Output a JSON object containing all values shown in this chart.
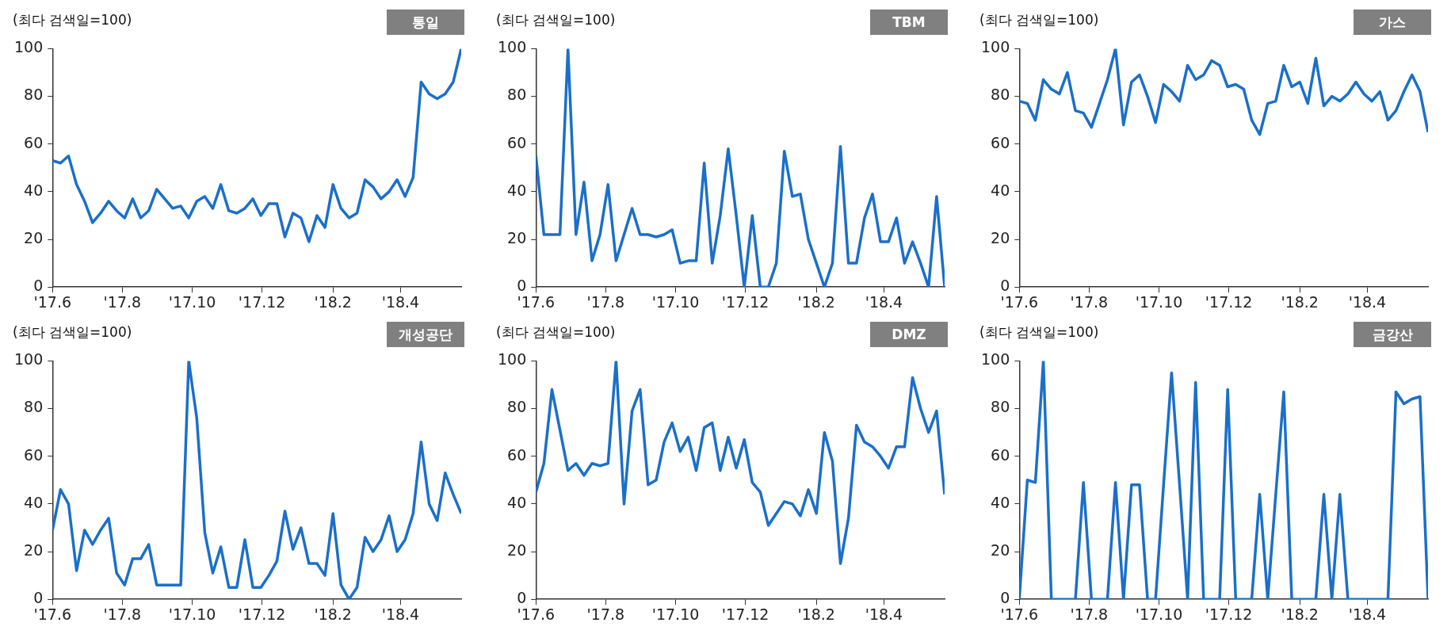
{
  "chart_data": [
    {
      "type": "line",
      "title": "통일",
      "ylabel": "(최다 검색일=100)",
      "color": "#1a6fca",
      "x": [
        "2017-06-01",
        "2017-06-08",
        "2017-06-15",
        "2017-06-22",
        "2017-06-29",
        "2017-07-06",
        "2017-07-13",
        "2017-07-20",
        "2017-07-27",
        "2017-08-03",
        "2017-08-10",
        "2017-08-17",
        "2017-08-24",
        "2017-08-31",
        "2017-09-07",
        "2017-09-14",
        "2017-09-21",
        "2017-09-28",
        "2017-10-05",
        "2017-10-12",
        "2017-10-19",
        "2017-10-26",
        "2017-11-02",
        "2017-11-09",
        "2017-11-16",
        "2017-11-23",
        "2017-11-30",
        "2017-12-07",
        "2017-12-14",
        "2017-12-21",
        "2017-12-28",
        "2018-01-04",
        "2018-01-11",
        "2018-01-18",
        "2018-01-25",
        "2018-02-01",
        "2018-02-08",
        "2018-02-15",
        "2018-02-22",
        "2018-03-01",
        "2018-03-08",
        "2018-03-15",
        "2018-03-22",
        "2018-03-29",
        "2018-04-05",
        "2018-04-12",
        "2018-04-19",
        "2018-04-26",
        "2018-05-03",
        "2018-05-10",
        "2018-05-17",
        "2018-05-24"
      ],
      "values": [
        53,
        52,
        55,
        43,
        36,
        27,
        31,
        36,
        32,
        29,
        37,
        29,
        32,
        41,
        37,
        33,
        34,
        29,
        36,
        38,
        33,
        43,
        32,
        31,
        33,
        37,
        30,
        35,
        35,
        21,
        31,
        29,
        19,
        30,
        25,
        43,
        33,
        29,
        31,
        45,
        42,
        37,
        40,
        45,
        38,
        46,
        86,
        81,
        79,
        81,
        86,
        100
      ],
      "xlim": [
        "2017-06-01",
        "2018-05-24"
      ],
      "xticks": [
        {
          "value": "2017-06-01",
          "label": "'17.6"
        },
        {
          "value": "2017-08-01",
          "label": "'17.8"
        },
        {
          "value": "2017-10-01",
          "label": "'17.10"
        },
        {
          "value": "2017-12-01",
          "label": "'17.12"
        },
        {
          "value": "2018-02-01",
          "label": "'18.2"
        },
        {
          "value": "2018-04-01",
          "label": "'18.4"
        }
      ],
      "ylim": [
        0,
        100
      ],
      "yticks": [
        0,
        20,
        40,
        60,
        80,
        100
      ]
    },
    {
      "type": "line",
      "title": "TBM",
      "ylabel": "(최다 검색일=100)",
      "color": "#1a6fca",
      "x": [
        "2017-06-01",
        "2017-06-08",
        "2017-06-15",
        "2017-06-22",
        "2017-06-29",
        "2017-07-06",
        "2017-07-13",
        "2017-07-20",
        "2017-07-27",
        "2017-08-03",
        "2017-08-10",
        "2017-08-17",
        "2017-08-24",
        "2017-08-31",
        "2017-09-07",
        "2017-09-14",
        "2017-09-21",
        "2017-09-28",
        "2017-10-05",
        "2017-10-12",
        "2017-10-19",
        "2017-10-26",
        "2017-11-02",
        "2017-11-09",
        "2017-11-16",
        "2017-11-23",
        "2017-11-30",
        "2017-12-07",
        "2017-12-14",
        "2017-12-21",
        "2017-12-28",
        "2018-01-04",
        "2018-01-11",
        "2018-01-18",
        "2018-01-25",
        "2018-02-01",
        "2018-02-08",
        "2018-02-15",
        "2018-02-22",
        "2018-03-01",
        "2018-03-08",
        "2018-03-15",
        "2018-03-22",
        "2018-03-29",
        "2018-04-05",
        "2018-04-12",
        "2018-04-19",
        "2018-04-26",
        "2018-05-03",
        "2018-05-10",
        "2018-05-17",
        "2018-05-24"
      ],
      "values": [
        55,
        22,
        22,
        22,
        100,
        22,
        44,
        11,
        22,
        43,
        11,
        22,
        33,
        22,
        22,
        21,
        22,
        24,
        10,
        11,
        11,
        52,
        10,
        30,
        58,
        30,
        0,
        30,
        0,
        0,
        10,
        57,
        38,
        39,
        20,
        10,
        0,
        10,
        59,
        10,
        10,
        29,
        39,
        19,
        19,
        29,
        10,
        19,
        10,
        0,
        38,
        0
      ],
      "xlim": [
        "2017-06-01",
        "2018-05-24"
      ],
      "xticks": [
        {
          "value": "2017-06-01",
          "label": "'17.6"
        },
        {
          "value": "2017-08-01",
          "label": "'17.8"
        },
        {
          "value": "2017-10-01",
          "label": "'17.10"
        },
        {
          "value": "2017-12-01",
          "label": "'17.12"
        },
        {
          "value": "2018-02-01",
          "label": "'18.2"
        },
        {
          "value": "2018-04-01",
          "label": "'18.4"
        }
      ],
      "ylim": [
        0,
        100
      ],
      "yticks": [
        0,
        20,
        40,
        60,
        80,
        100
      ]
    },
    {
      "type": "line",
      "title": "가스",
      "ylabel": "(최다 검색일=100)",
      "color": "#1a6fca",
      "x": [
        "2017-06-01",
        "2017-06-08",
        "2017-06-15",
        "2017-06-22",
        "2017-06-29",
        "2017-07-06",
        "2017-07-13",
        "2017-07-20",
        "2017-07-27",
        "2017-08-03",
        "2017-08-10",
        "2017-08-17",
        "2017-08-24",
        "2017-08-31",
        "2017-09-07",
        "2017-09-14",
        "2017-09-21",
        "2017-09-28",
        "2017-10-05",
        "2017-10-12",
        "2017-10-19",
        "2017-10-26",
        "2017-11-02",
        "2017-11-09",
        "2017-11-16",
        "2017-11-23",
        "2017-11-30",
        "2017-12-07",
        "2017-12-14",
        "2017-12-21",
        "2017-12-28",
        "2018-01-04",
        "2018-01-11",
        "2018-01-18",
        "2018-01-25",
        "2018-02-01",
        "2018-02-08",
        "2018-02-15",
        "2018-02-22",
        "2018-03-01",
        "2018-03-08",
        "2018-03-15",
        "2018-03-22",
        "2018-03-29",
        "2018-04-05",
        "2018-04-12",
        "2018-04-19",
        "2018-04-26",
        "2018-05-03",
        "2018-05-10",
        "2018-05-17",
        "2018-05-24"
      ],
      "values": [
        78,
        77,
        70,
        87,
        83,
        81,
        90,
        74,
        73,
        67,
        77,
        87,
        100,
        68,
        86,
        89,
        80,
        69,
        85,
        82,
        78,
        93,
        87,
        89,
        95,
        93,
        84,
        85,
        83,
        70,
        64,
        77,
        78,
        93,
        84,
        86,
        77,
        96,
        76,
        80,
        78,
        81,
        86,
        81,
        78,
        82,
        70,
        74,
        82,
        89,
        82,
        65
      ],
      "xlim": [
        "2017-06-01",
        "2018-05-24"
      ],
      "xticks": [
        {
          "value": "2017-06-01",
          "label": "'17.6"
        },
        {
          "value": "2017-08-01",
          "label": "'17.8"
        },
        {
          "value": "2017-10-01",
          "label": "'17.10"
        },
        {
          "value": "2017-12-01",
          "label": "'17.12"
        },
        {
          "value": "2018-02-01",
          "label": "'18.2"
        },
        {
          "value": "2018-04-01",
          "label": "'18.4"
        }
      ],
      "ylim": [
        0,
        100
      ],
      "yticks": [
        0,
        20,
        40,
        60,
        80,
        100
      ]
    },
    {
      "type": "line",
      "title": "개성공단",
      "ylabel": "(최다 검색일=100)",
      "color": "#1a6fca",
      "x": [
        "2017-06-01",
        "2017-06-08",
        "2017-06-15",
        "2017-06-22",
        "2017-06-29",
        "2017-07-06",
        "2017-07-13",
        "2017-07-20",
        "2017-07-27",
        "2017-08-03",
        "2017-08-10",
        "2017-08-17",
        "2017-08-24",
        "2017-08-31",
        "2017-09-07",
        "2017-09-14",
        "2017-09-21",
        "2017-09-28",
        "2017-10-05",
        "2017-10-12",
        "2017-10-19",
        "2017-10-26",
        "2017-11-02",
        "2017-11-09",
        "2017-11-16",
        "2017-11-23",
        "2017-11-30",
        "2017-12-07",
        "2017-12-14",
        "2017-12-21",
        "2017-12-28",
        "2018-01-04",
        "2018-01-11",
        "2018-01-18",
        "2018-01-25",
        "2018-02-01",
        "2018-02-08",
        "2018-02-15",
        "2018-02-22",
        "2018-03-01",
        "2018-03-08",
        "2018-03-15",
        "2018-03-22",
        "2018-03-29",
        "2018-04-05",
        "2018-04-12",
        "2018-04-19",
        "2018-04-26",
        "2018-05-03",
        "2018-05-10",
        "2018-05-17",
        "2018-05-24"
      ],
      "values": [
        29,
        46,
        40,
        12,
        29,
        23,
        29,
        34,
        11,
        6,
        17,
        17,
        23,
        6,
        6,
        6,
        6,
        100,
        76,
        28,
        11,
        22,
        5,
        5,
        25,
        5,
        5,
        10,
        16,
        37,
        21,
        30,
        15,
        15,
        10,
        36,
        6,
        0,
        5,
        26,
        20,
        25,
        35,
        20,
        25,
        36,
        66,
        40,
        33,
        53,
        44,
        36
      ],
      "xlim": [
        "2017-06-01",
        "2018-05-24"
      ],
      "xticks": [
        {
          "value": "2017-06-01",
          "label": "'17.6"
        },
        {
          "value": "2017-08-01",
          "label": "'17.8"
        },
        {
          "value": "2017-10-01",
          "label": "'17.10"
        },
        {
          "value": "2017-12-01",
          "label": "'17.12"
        },
        {
          "value": "2018-02-01",
          "label": "'18.2"
        },
        {
          "value": "2018-04-01",
          "label": "'18.4"
        }
      ],
      "ylim": [
        0,
        100
      ],
      "yticks": [
        0,
        20,
        40,
        60,
        80,
        100
      ]
    },
    {
      "type": "line",
      "title": "DMZ",
      "ylabel": "(최다 검색일=100)",
      "color": "#1a6fca",
      "x": [
        "2017-06-01",
        "2017-06-08",
        "2017-06-15",
        "2017-06-22",
        "2017-06-29",
        "2017-07-06",
        "2017-07-13",
        "2017-07-20",
        "2017-07-27",
        "2017-08-03",
        "2017-08-10",
        "2017-08-17",
        "2017-08-24",
        "2017-08-31",
        "2017-09-07",
        "2017-09-14",
        "2017-09-21",
        "2017-09-28",
        "2017-10-05",
        "2017-10-12",
        "2017-10-19",
        "2017-10-26",
        "2017-11-02",
        "2017-11-09",
        "2017-11-16",
        "2017-11-23",
        "2017-11-30",
        "2017-12-07",
        "2017-12-14",
        "2017-12-21",
        "2017-12-28",
        "2018-01-04",
        "2018-01-11",
        "2018-01-18",
        "2018-01-25",
        "2018-02-01",
        "2018-02-08",
        "2018-02-15",
        "2018-02-22",
        "2018-03-01",
        "2018-03-08",
        "2018-03-15",
        "2018-03-22",
        "2018-03-29",
        "2018-04-05",
        "2018-04-12",
        "2018-04-19",
        "2018-04-26",
        "2018-05-03",
        "2018-05-10",
        "2018-05-17",
        "2018-05-24"
      ],
      "values": [
        45,
        57,
        88,
        71,
        54,
        57,
        52,
        57,
        56,
        57,
        100,
        40,
        79,
        88,
        48,
        50,
        66,
        74,
        62,
        68,
        54,
        72,
        74,
        54,
        68,
        55,
        67,
        49,
        45,
        31,
        36,
        41,
        40,
        35,
        46,
        36,
        70,
        58,
        15,
        34,
        73,
        66,
        64,
        60,
        55,
        64,
        64,
        93,
        80,
        70,
        79,
        44
      ],
      "xlim": [
        "2017-06-01",
        "2018-05-24"
      ],
      "xticks": [
        {
          "value": "2017-06-01",
          "label": "'17.6"
        },
        {
          "value": "2017-08-01",
          "label": "'17.8"
        },
        {
          "value": "2017-10-01",
          "label": "'17.10"
        },
        {
          "value": "2017-12-01",
          "label": "'17.12"
        },
        {
          "value": "2018-02-01",
          "label": "'18.2"
        },
        {
          "value": "2018-04-01",
          "label": "'18.4"
        }
      ],
      "ylim": [
        0,
        100
      ],
      "yticks": [
        0,
        20,
        40,
        60,
        80,
        100
      ]
    },
    {
      "type": "line",
      "title": "금강산",
      "ylabel": "(최다 검색일=100)",
      "color": "#1a6fca",
      "x": [
        "2017-06-01",
        "2017-06-08",
        "2017-06-15",
        "2017-06-22",
        "2017-06-29",
        "2017-07-06",
        "2017-07-13",
        "2017-07-20",
        "2017-07-27",
        "2017-08-03",
        "2017-08-10",
        "2017-08-17",
        "2017-08-24",
        "2017-08-31",
        "2017-09-07",
        "2017-09-14",
        "2017-09-21",
        "2017-09-28",
        "2017-10-05",
        "2017-10-12",
        "2017-10-19",
        "2017-10-26",
        "2017-11-02",
        "2017-11-09",
        "2017-11-16",
        "2017-11-23",
        "2017-11-30",
        "2017-12-07",
        "2017-12-14",
        "2017-12-21",
        "2017-12-28",
        "2018-01-04",
        "2018-01-11",
        "2018-01-18",
        "2018-01-25",
        "2018-02-01",
        "2018-02-08",
        "2018-02-15",
        "2018-02-22",
        "2018-03-01",
        "2018-03-08",
        "2018-03-15",
        "2018-03-22",
        "2018-03-29",
        "2018-04-05",
        "2018-04-12",
        "2018-04-19",
        "2018-04-26",
        "2018-05-03",
        "2018-05-10",
        "2018-05-17",
        "2018-05-24"
      ],
      "values": [
        0,
        50,
        49,
        100,
        0,
        0,
        0,
        0,
        49,
        0,
        0,
        0,
        49,
        0,
        48,
        48,
        0,
        0,
        48,
        95,
        48,
        0,
        91,
        0,
        0,
        0,
        88,
        0,
        0,
        0,
        44,
        0,
        44,
        87,
        0,
        0,
        0,
        0,
        44,
        0,
        44,
        0,
        0,
        0,
        0,
        0,
        0,
        87,
        82,
        84,
        85,
        0
      ],
      "xlim": [
        "2017-06-01",
        "2018-05-24"
      ],
      "xticks": [
        {
          "value": "2017-06-01",
          "label": "'17.6"
        },
        {
          "value": "2017-08-01",
          "label": "'17.8"
        },
        {
          "value": "2017-10-01",
          "label": "'17.10"
        },
        {
          "value": "2017-12-01",
          "label": "'17.12"
        },
        {
          "value": "2018-02-01",
          "label": "'18.2"
        },
        {
          "value": "2018-04-01",
          "label": "'18.4"
        }
      ],
      "ylim": [
        0,
        100
      ],
      "yticks": [
        0,
        20,
        40,
        60,
        80,
        100
      ]
    }
  ]
}
